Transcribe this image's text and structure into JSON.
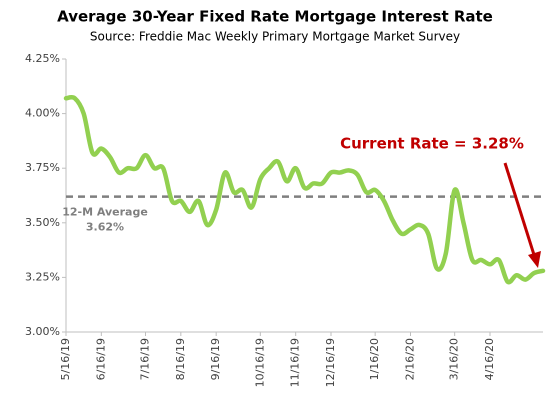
{
  "chart_data": {
    "type": "line",
    "title": "Average 30-Year Fixed Rate Mortgage Interest Rate",
    "subtitle": "Source: Freddie Mac Weekly Primary Mortgage Market Survey",
    "categories": [
      "5/16/19",
      null,
      null,
      null,
      "6/16/19",
      null,
      null,
      null,
      null,
      "7/16/19",
      null,
      null,
      null,
      "8/16/19",
      null,
      null,
      null,
      "9/16/19",
      null,
      null,
      null,
      null,
      "10/16/19",
      null,
      null,
      null,
      "11/16/19",
      null,
      null,
      null,
      "12/16/19",
      null,
      null,
      null,
      null,
      "1/16/20",
      null,
      null,
      null,
      "2/16/20",
      null,
      null,
      null,
      null,
      "3/16/20",
      null,
      null,
      null,
      "4/16/20",
      null,
      null,
      null,
      null,
      null,
      null
    ],
    "series": [
      {
        "name": "30-Year Fixed Rate",
        "color": "#92d050",
        "values": [
          4.07,
          4.07,
          4.0,
          3.82,
          3.84,
          3.8,
          3.73,
          3.75,
          3.75,
          3.81,
          3.75,
          3.75,
          3.6,
          3.6,
          3.55,
          3.6,
          3.49,
          3.56,
          3.73,
          3.64,
          3.65,
          3.57,
          3.7,
          3.75,
          3.78,
          3.69,
          3.75,
          3.66,
          3.68,
          3.68,
          3.73,
          3.73,
          3.74,
          3.72,
          3.64,
          3.65,
          3.6,
          3.51,
          3.45,
          3.47,
          3.49,
          3.45,
          3.29,
          3.36,
          3.65,
          3.5,
          3.33,
          3.33,
          3.31,
          3.33,
          3.23,
          3.26,
          3.24,
          3.27,
          3.28
        ]
      }
    ],
    "ylim": [
      3.0,
      4.25
    ],
    "yticks": [
      {
        "value": 3.0,
        "label": "3.00%"
      },
      {
        "value": 3.25,
        "label": "3.25%"
      },
      {
        "value": 3.5,
        "label": "3.50%"
      },
      {
        "value": 3.75,
        "label": "3.75%"
      },
      {
        "value": 4.0,
        "label": "4.00%"
      },
      {
        "value": 4.25,
        "label": "4.25%"
      }
    ],
    "grid": false,
    "reference_line": {
      "label": "12-M Average",
      "value": 3.62,
      "value_label": "3.62%",
      "color": "#7f7f7f"
    },
    "annotation": {
      "text": "Current Rate = 3.28%",
      "color": "#c00000"
    }
  }
}
